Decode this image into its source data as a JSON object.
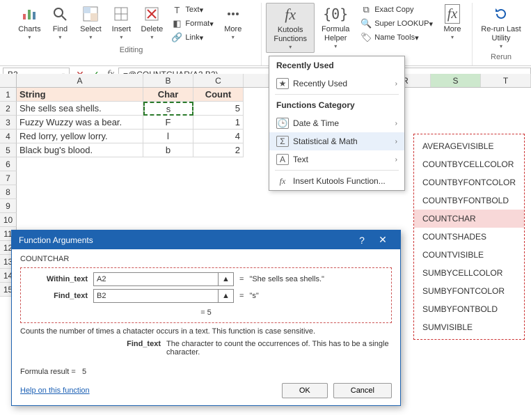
{
  "ribbon": {
    "groups": {
      "editing_label": "Editing",
      "rerun_label": "Rerun"
    },
    "charts": "Charts",
    "find": "Find",
    "select": "Select",
    "insert": "Insert",
    "delete": "Delete",
    "text": "Text",
    "format": "Format",
    "link": "Link",
    "more": "More",
    "kutools_functions": "Kutools Functions",
    "formula_helper": "Formula Helper",
    "exact_copy": "Exact Copy",
    "super_lookup": "Super LOOKUP",
    "name_tools": "Name Tools",
    "more2": "More",
    "rerun": "Re-run Last Utility"
  },
  "formula_bar": {
    "name": "B2",
    "formula": "=@COUNTCHAR(A2,B2)"
  },
  "columns": [
    "A",
    "B",
    "C"
  ],
  "far_cols": [
    "R",
    "S",
    "T"
  ],
  "headers": {
    "A": "String",
    "B": "Char",
    "C": "Count"
  },
  "rows": [
    {
      "A": "She sells sea shells.",
      "B": "s",
      "C": "5"
    },
    {
      "A": "Fuzzy Wuzzy was a bear.",
      "B": "F",
      "C": "1"
    },
    {
      "A": "Red lorry, yellow lorry.",
      "B": "l",
      "C": "4"
    },
    {
      "A": "Black bug's blood.",
      "B": "b",
      "C": "2"
    }
  ],
  "dropdown": {
    "recent_section": "Recently Used",
    "recent_item": "Recently Used",
    "category_section": "Functions Category",
    "date_time": "Date & Time",
    "stat_math": "Statistical & Math",
    "text": "Text",
    "insert_fn": "Insert Kutools Function..."
  },
  "submenu": [
    "AVERAGEVISIBLE",
    "COUNTBYCELLCOLOR",
    "COUNTBYFONTCOLOR",
    "COUNTBYFONTBOLD",
    "COUNTCHAR",
    "COUNTSHADES",
    "COUNTVISIBLE",
    "SUMBYCELLCOLOR",
    "SUMBYFONTCOLOR",
    "SUMBYFONTBOLD",
    "SUMVISIBLE"
  ],
  "submenu_selected": "COUNTCHAR",
  "dialog": {
    "title": "Function Arguments",
    "fn": "COUNTCHAR",
    "args": [
      {
        "label": "Within_text",
        "value": "A2",
        "eval": "\"She sells sea shells.\""
      },
      {
        "label": "Find_text",
        "value": "B2",
        "eval": "\"s\""
      }
    ],
    "result_inline": "=   5",
    "desc": "Counts the number of times a chatacter occurs in a text. This function is case sensitive.",
    "arg_help_label": "Find_text",
    "arg_help_text": "The character to count the occurrences of. This has to be a single character.",
    "formula_result_label": "Formula result  =",
    "formula_result": "5",
    "help": "Help on this function",
    "ok": "OK",
    "cancel": "Cancel"
  }
}
